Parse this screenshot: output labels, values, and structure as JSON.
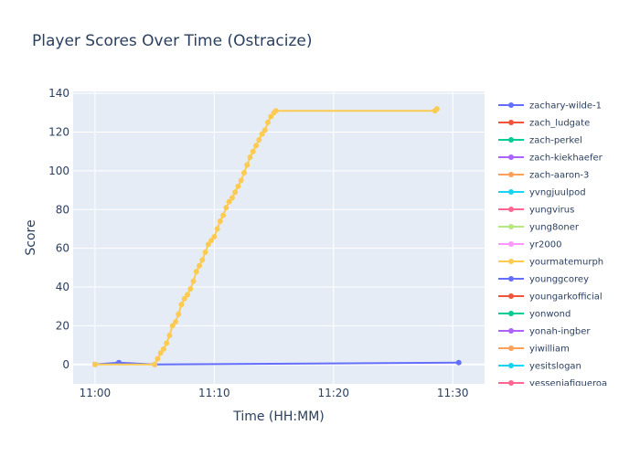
{
  "chart_data": {
    "type": "line",
    "title": "Player Scores Over Time (Ostracize)",
    "xlabel": "Time (HH:MM)",
    "ylabel": "Score",
    "xlim": [
      "10:58:10",
      "11:32:40"
    ],
    "ylim": [
      -10,
      141
    ],
    "x_ticks": [
      "11:00",
      "11:10",
      "11:20",
      "11:30"
    ],
    "y_ticks": [
      0,
      20,
      40,
      60,
      80,
      100,
      120,
      140
    ],
    "grid": true,
    "legend_position": "right",
    "series": [
      {
        "name": "zachary-wilde-1",
        "color": "#636efa",
        "points": [
          [
            "11:00:00",
            0
          ],
          [
            "11:02:00",
            1
          ],
          [
            "11:05:00",
            0
          ],
          [
            "11:30:30",
            1
          ]
        ]
      },
      {
        "name": "zach_ludgate",
        "color": "#EF553B",
        "points": []
      },
      {
        "name": "zach-perkel",
        "color": "#00cc96",
        "points": []
      },
      {
        "name": "zach-kiekhaefer",
        "color": "#ab63fa",
        "points": []
      },
      {
        "name": "zach-aaron-3",
        "color": "#FFA15A",
        "points": []
      },
      {
        "name": "yvngjuulpod",
        "color": "#19d3f3",
        "points": []
      },
      {
        "name": "yungvirus",
        "color": "#FF6692",
        "points": []
      },
      {
        "name": "yung8oner",
        "color": "#B6E880",
        "points": []
      },
      {
        "name": "yr2000",
        "color": "#FF97FF",
        "points": []
      },
      {
        "name": "yourmatemurph",
        "color": "#FECB52",
        "points": [
          [
            "11:00:00",
            0
          ],
          [
            "11:05:00",
            0
          ],
          [
            "11:05:15",
            3
          ],
          [
            "11:05:30",
            6
          ],
          [
            "11:05:45",
            8
          ],
          [
            "11:06:00",
            11
          ],
          [
            "11:06:15",
            15
          ],
          [
            "11:06:30",
            20
          ],
          [
            "11:06:45",
            22
          ],
          [
            "11:07:00",
            26
          ],
          [
            "11:07:15",
            31
          ],
          [
            "11:07:30",
            34
          ],
          [
            "11:07:45",
            36
          ],
          [
            "11:08:00",
            39
          ],
          [
            "11:08:15",
            43
          ],
          [
            "11:08:30",
            48
          ],
          [
            "11:08:45",
            51
          ],
          [
            "11:09:00",
            54
          ],
          [
            "11:09:15",
            58
          ],
          [
            "11:09:30",
            62
          ],
          [
            "11:09:45",
            64
          ],
          [
            "11:10:00",
            66
          ],
          [
            "11:10:15",
            70
          ],
          [
            "11:10:30",
            74
          ],
          [
            "11:10:45",
            77
          ],
          [
            "11:11:00",
            81
          ],
          [
            "11:11:15",
            84
          ],
          [
            "11:11:30",
            86
          ],
          [
            "11:11:45",
            89
          ],
          [
            "11:12:00",
            92
          ],
          [
            "11:12:15",
            95
          ],
          [
            "11:12:30",
            99
          ],
          [
            "11:12:45",
            103
          ],
          [
            "11:13:00",
            107
          ],
          [
            "11:13:15",
            110
          ],
          [
            "11:13:30",
            113
          ],
          [
            "11:13:45",
            116
          ],
          [
            "11:14:00",
            119
          ],
          [
            "11:14:15",
            121
          ],
          [
            "11:14:30",
            125
          ],
          [
            "11:14:45",
            128
          ],
          [
            "11:15:00",
            130
          ],
          [
            "11:15:10",
            131
          ],
          [
            "11:28:30",
            131
          ],
          [
            "11:28:40",
            132
          ]
        ]
      },
      {
        "name": "younggcorey",
        "color": "#636efa",
        "points": []
      },
      {
        "name": "youngarkofficial",
        "color": "#EF553B",
        "points": []
      },
      {
        "name": "yonwond",
        "color": "#00cc96",
        "points": []
      },
      {
        "name": "yonah-ingber",
        "color": "#ab63fa",
        "points": []
      },
      {
        "name": "yiwilliam",
        "color": "#FFA15A",
        "points": []
      },
      {
        "name": "yesitslogan",
        "color": "#19d3f3",
        "points": []
      },
      {
        "name": "yesseniafigueroa",
        "color": "#FF6692",
        "points": []
      }
    ]
  }
}
